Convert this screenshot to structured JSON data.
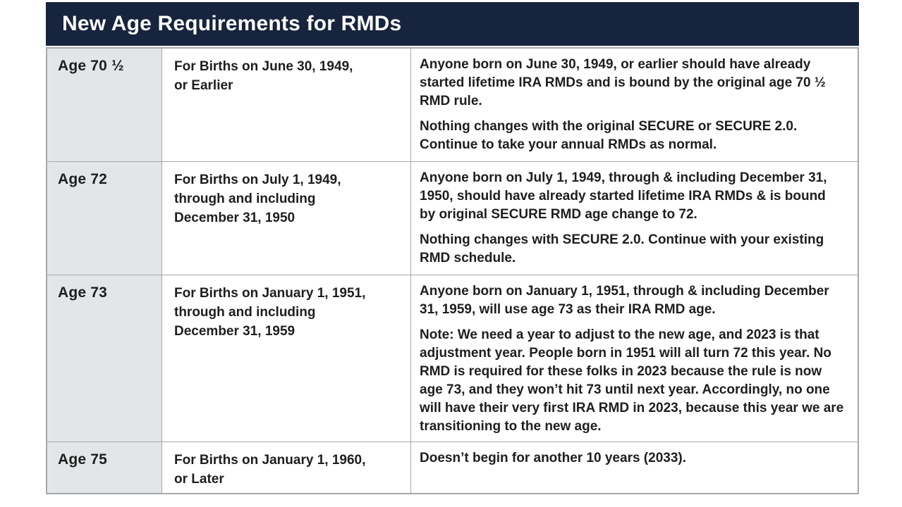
{
  "title": "New Age Requirements for RMDs",
  "colors": {
    "header_bg": "#16243D",
    "age_col_bg": "#E3E6E8",
    "border": "#A6A9AC",
    "text": "#1E1E1E",
    "title_text": "#FFFFFF"
  },
  "table": {
    "rows": [
      {
        "age": "Age 70 ½",
        "births": "For Births on June 30, 1949,\nor Earlier",
        "details": [
          "Anyone born on June 30, 1949, or earlier should have already started lifetime IRA RMDs and is bound by the original age 70 ½ RMD rule.",
          "Nothing changes with the original SECURE or SECURE 2.0. Continue to take your annual RMDs as normal."
        ]
      },
      {
        "age": "Age 72",
        "births": "For Births on July 1, 1949,\nthrough and including\nDecember 31, 1950",
        "details": [
          "Anyone born on July 1, 1949, through & including December 31, 1950, should have already started lifetime IRA RMDs & is bound by original SECURE RMD age change to 72.",
          "Nothing changes with SECURE 2.0. Continue with your existing RMD schedule."
        ]
      },
      {
        "age": "Age 73",
        "births": "For Births on January 1, 1951,\nthrough and including\nDecember 31, 1959",
        "details": [
          "Anyone born on January 1, 1951, through & including December 31, 1959, will use age 73 as their IRA RMD age.",
          "Note: We need a year to adjust to the new age, and 2023 is that adjustment year. People born in 1951 will all turn 72 this year. No RMD is required for these folks in 2023 because the rule is now age 73, and they won’t hit 73 until next year. Accordingly, no one will have their very first IRA RMD in 2023, because this year we are transitioning to the new age."
        ]
      },
      {
        "age": "Age 75",
        "births": "For Births on January 1, 1960,\nor Later",
        "details": [
          "Doesn’t begin for another 10 years (2033)."
        ]
      }
    ]
  }
}
